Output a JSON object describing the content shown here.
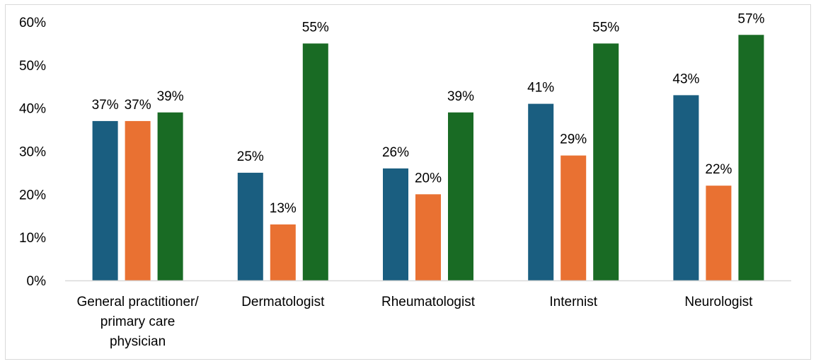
{
  "chart_data": {
    "type": "bar",
    "title": "",
    "xlabel": "",
    "ylabel": "",
    "ylim": [
      0,
      60
    ],
    "y_ticks": [
      "0%",
      "10%",
      "20%",
      "30%",
      "40%",
      "50%",
      "60%"
    ],
    "y_tick_values": [
      0,
      10,
      20,
      30,
      40,
      50,
      60
    ],
    "grid": false,
    "legend": "none",
    "categories": [
      [
        "General practitioner/",
        "primary care",
        "physician"
      ],
      [
        "Dermatologist"
      ],
      [
        "Rheumatologist"
      ],
      [
        "Internist"
      ],
      [
        "Neurologist"
      ]
    ],
    "series": [
      {
        "color": "#1a5e80",
        "values": [
          37,
          25,
          26,
          41,
          43
        ],
        "labels": [
          "37%",
          "25%",
          "26%",
          "41%",
          "43%"
        ]
      },
      {
        "color": "#e97132",
        "values": [
          37,
          13,
          20,
          29,
          22
        ],
        "labels": [
          "37%",
          "13%",
          "20%",
          "29%",
          "22%"
        ]
      },
      {
        "color": "#196b24",
        "values": [
          39,
          55,
          39,
          55,
          57
        ],
        "labels": [
          "39%",
          "55%",
          "39%",
          "55%",
          "57%"
        ]
      }
    ],
    "axis_color": "#d9d9d9"
  }
}
